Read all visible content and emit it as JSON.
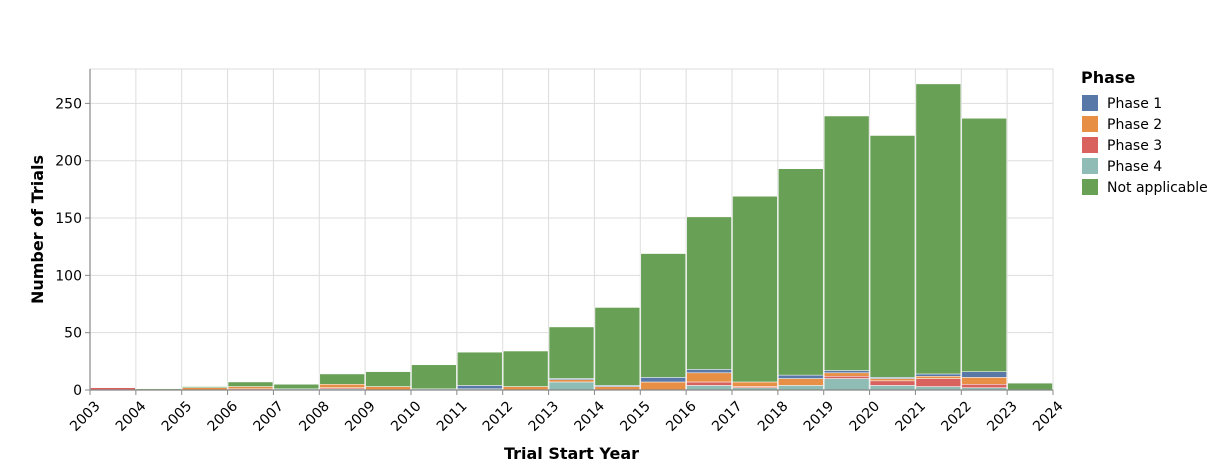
{
  "chart_data": {
    "type": "bar",
    "stacked": true,
    "title": "",
    "xlabel": "Trial Start Year",
    "ylabel": "Number of Trials",
    "x_ticks": [
      "2003",
      "2004",
      "2005",
      "2006",
      "2007",
      "2008",
      "2009",
      "2010",
      "2011",
      "2012",
      "2013",
      "2014",
      "2015",
      "2016",
      "2017",
      "2018",
      "2019",
      "2020",
      "2021",
      "2022",
      "2023",
      "2024"
    ],
    "y_ticks": [
      0,
      50,
      100,
      150,
      200,
      250
    ],
    "ylim": [
      0,
      280
    ],
    "grid": true,
    "legend": {
      "title": "Phase",
      "placement": "right"
    },
    "bins": [
      {
        "start": "2003",
        "end": "2004"
      },
      {
        "start": "2004",
        "end": "2005"
      },
      {
        "start": "2005",
        "end": "2006"
      },
      {
        "start": "2006",
        "end": "2007"
      },
      {
        "start": "2007",
        "end": "2008"
      },
      {
        "start": "2008",
        "end": "2009"
      },
      {
        "start": "2009",
        "end": "2010"
      },
      {
        "start": "2010",
        "end": "2011"
      },
      {
        "start": "2011",
        "end": "2012"
      },
      {
        "start": "2012",
        "end": "2013"
      },
      {
        "start": "2013",
        "end": "2014"
      },
      {
        "start": "2014",
        "end": "2015"
      },
      {
        "start": "2015",
        "end": "2016"
      },
      {
        "start": "2016",
        "end": "2017"
      },
      {
        "start": "2017",
        "end": "2018"
      },
      {
        "start": "2018",
        "end": "2019"
      },
      {
        "start": "2019",
        "end": "2020"
      },
      {
        "start": "2020",
        "end": "2021"
      },
      {
        "start": "2021",
        "end": "2022"
      },
      {
        "start": "2022",
        "end": "2023"
      },
      {
        "start": "2023",
        "end": "2024"
      }
    ],
    "series": [
      {
        "name": "Phase 4",
        "color": "#8fbcb5",
        "values": [
          0,
          0,
          0,
          0,
          1,
          1,
          0,
          1,
          1,
          0,
          7,
          0,
          0,
          4,
          2,
          4,
          10,
          4,
          3,
          2,
          0
        ]
      },
      {
        "name": "Phase 3",
        "color": "#d9625e",
        "values": [
          2,
          0,
          0,
          1,
          0,
          1,
          0,
          0,
          0,
          0,
          0,
          0,
          0,
          3,
          1,
          0,
          2,
          4,
          7,
          3,
          0
        ]
      },
      {
        "name": "Phase 2",
        "color": "#e78f45",
        "values": [
          0,
          0,
          2,
          2,
          0,
          3,
          3,
          0,
          0,
          3,
          2,
          3,
          7,
          8,
          4,
          6,
          3,
          2,
          2,
          6,
          0
        ]
      },
      {
        "name": "Phase 1",
        "color": "#5878a7",
        "values": [
          0,
          0,
          0,
          0,
          0,
          0,
          0,
          0,
          3,
          0,
          1,
          1,
          4,
          3,
          0,
          3,
          2,
          1,
          2,
          5,
          0
        ]
      },
      {
        "name": "Not applicable",
        "color": "#68a055",
        "values": [
          0,
          1,
          1,
          4,
          4,
          9,
          13,
          21,
          29,
          31,
          45,
          68,
          108,
          133,
          162,
          180,
          222,
          211,
          253,
          221,
          6
        ]
      }
    ],
    "legend_order": [
      "Phase 1",
      "Phase 2",
      "Phase 3",
      "Phase 4",
      "Not applicable"
    ]
  }
}
